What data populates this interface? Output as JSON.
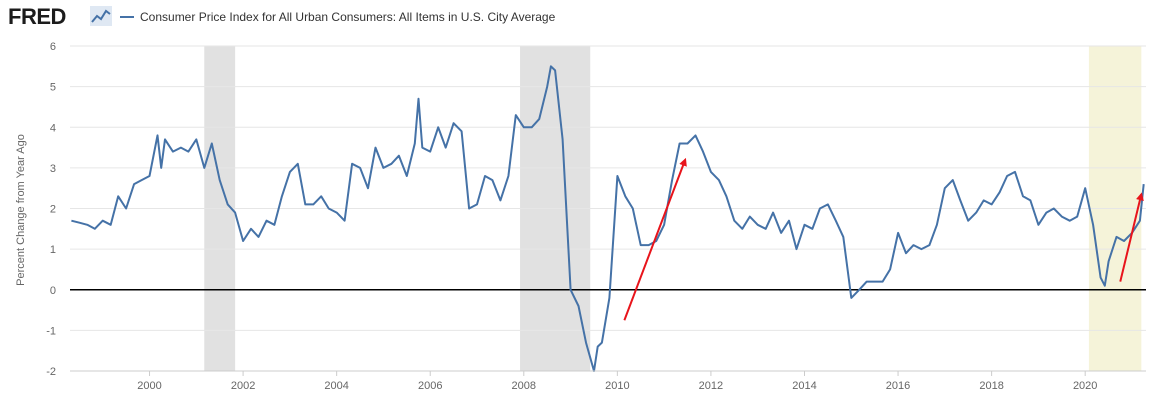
{
  "header": {
    "logo_text": "FRED",
    "legend_label": "Consumer Price Index for All Urban Consumers: All Items in U.S. City Average"
  },
  "colors": {
    "series": "#4572a7",
    "recession": "#e1e1e1",
    "highlight": "#f5f3d9",
    "zero_line": "#000000",
    "arrow": "#e8141b"
  },
  "chart_data": {
    "type": "line",
    "title": "Consumer Price Index for All Urban Consumers: All Items in U.S. City Average",
    "xlabel": "",
    "ylabel": "Percent Change from Year Ago",
    "xlim": [
      1998.3,
      2021.3
    ],
    "ylim": [
      -2,
      6
    ],
    "y_ticks": [
      "-2",
      "-1",
      "0",
      "1",
      "2",
      "3",
      "4",
      "5",
      "6"
    ],
    "x_ticks": [
      "2000",
      "2002",
      "2004",
      "2006",
      "2008",
      "2010",
      "2012",
      "2014",
      "2016",
      "2018",
      "2020"
    ],
    "recessions": [
      [
        2001.17,
        2001.83
      ],
      [
        2007.92,
        2009.42
      ]
    ],
    "highlight_region": [
      2020.08,
      2021.2
    ],
    "reference_line": 0,
    "annotations": [
      {
        "type": "arrow",
        "from": [
          2010.15,
          -0.75
        ],
        "to": [
          2011.45,
          3.2
        ]
      },
      {
        "type": "arrow",
        "from": [
          2020.75,
          0.2
        ],
        "to": [
          2021.2,
          2.35
        ]
      }
    ],
    "series": [
      {
        "name": "Consumer Price Index for All Urban Consumers: All Items in U.S. City Average",
        "x": [
          1998.33,
          1998.5,
          1998.67,
          1998.83,
          1999.0,
          1999.17,
          1999.33,
          1999.5,
          1999.67,
          1999.83,
          2000.0,
          2000.17,
          2000.25,
          2000.33,
          2000.5,
          2000.67,
          2000.83,
          2001.0,
          2001.17,
          2001.33,
          2001.5,
          2001.67,
          2001.83,
          2002.0,
          2002.17,
          2002.33,
          2002.5,
          2002.67,
          2002.83,
          2003.0,
          2003.17,
          2003.33,
          2003.5,
          2003.67,
          2003.83,
          2004.0,
          2004.17,
          2004.33,
          2004.5,
          2004.67,
          2004.83,
          2005.0,
          2005.17,
          2005.33,
          2005.5,
          2005.67,
          2005.75,
          2005.83,
          2006.0,
          2006.17,
          2006.33,
          2006.5,
          2006.67,
          2006.83,
          2007.0,
          2007.17,
          2007.33,
          2007.5,
          2007.67,
          2007.83,
          2008.0,
          2008.17,
          2008.33,
          2008.5,
          2008.58,
          2008.67,
          2008.83,
          2009.0,
          2009.17,
          2009.33,
          2009.5,
          2009.58,
          2009.67,
          2009.83,
          2010.0,
          2010.17,
          2010.33,
          2010.5,
          2010.67,
          2010.83,
          2011.0,
          2011.17,
          2011.33,
          2011.5,
          2011.67,
          2011.83,
          2012.0,
          2012.17,
          2012.33,
          2012.5,
          2012.67,
          2012.83,
          2013.0,
          2013.17,
          2013.33,
          2013.5,
          2013.67,
          2013.83,
          2014.0,
          2014.17,
          2014.33,
          2014.5,
          2014.67,
          2014.83,
          2015.0,
          2015.17,
          2015.33,
          2015.5,
          2015.67,
          2015.83,
          2016.0,
          2016.17,
          2016.33,
          2016.5,
          2016.67,
          2016.83,
          2017.0,
          2017.17,
          2017.33,
          2017.5,
          2017.67,
          2017.83,
          2018.0,
          2018.17,
          2018.33,
          2018.5,
          2018.67,
          2018.83,
          2019.0,
          2019.17,
          2019.33,
          2019.5,
          2019.67,
          2019.83,
          2020.0,
          2020.17,
          2020.33,
          2020.42,
          2020.5,
          2020.67,
          2020.83,
          2021.0,
          2021.17,
          2021.25
        ],
        "values": [
          1.7,
          1.65,
          1.6,
          1.5,
          1.7,
          1.6,
          2.3,
          2.0,
          2.6,
          2.7,
          2.8,
          3.8,
          3.0,
          3.7,
          3.4,
          3.5,
          3.4,
          3.7,
          3.0,
          3.6,
          2.7,
          2.1,
          1.9,
          1.2,
          1.5,
          1.3,
          1.7,
          1.6,
          2.3,
          2.9,
          3.1,
          2.1,
          2.1,
          2.3,
          2.0,
          1.9,
          1.7,
          3.1,
          3.0,
          2.5,
          3.5,
          3.0,
          3.1,
          3.3,
          2.8,
          3.6,
          4.7,
          3.5,
          3.4,
          4.0,
          3.5,
          4.1,
          3.9,
          2.0,
          2.1,
          2.8,
          2.7,
          2.2,
          2.8,
          4.3,
          4.0,
          4.0,
          4.2,
          5.0,
          5.5,
          5.4,
          3.7,
          0.0,
          -0.4,
          -1.3,
          -2.0,
          -1.4,
          -1.3,
          -0.2,
          2.8,
          2.3,
          2.0,
          1.1,
          1.1,
          1.2,
          1.6,
          2.7,
          3.6,
          3.6,
          3.8,
          3.4,
          2.9,
          2.7,
          2.3,
          1.7,
          1.5,
          1.8,
          1.6,
          1.5,
          1.9,
          1.4,
          1.7,
          1.0,
          1.6,
          1.5,
          2.0,
          2.1,
          1.7,
          1.3,
          -0.2,
          0.0,
          0.2,
          0.2,
          0.2,
          0.5,
          1.4,
          0.9,
          1.1,
          1.0,
          1.1,
          1.6,
          2.5,
          2.7,
          2.2,
          1.7,
          1.9,
          2.2,
          2.1,
          2.4,
          2.8,
          2.9,
          2.3,
          2.2,
          1.6,
          1.9,
          2.0,
          1.8,
          1.7,
          1.8,
          2.5,
          1.6,
          0.3,
          0.1,
          0.7,
          1.3,
          1.2,
          1.4,
          1.7,
          2.6
        ]
      }
    ]
  }
}
